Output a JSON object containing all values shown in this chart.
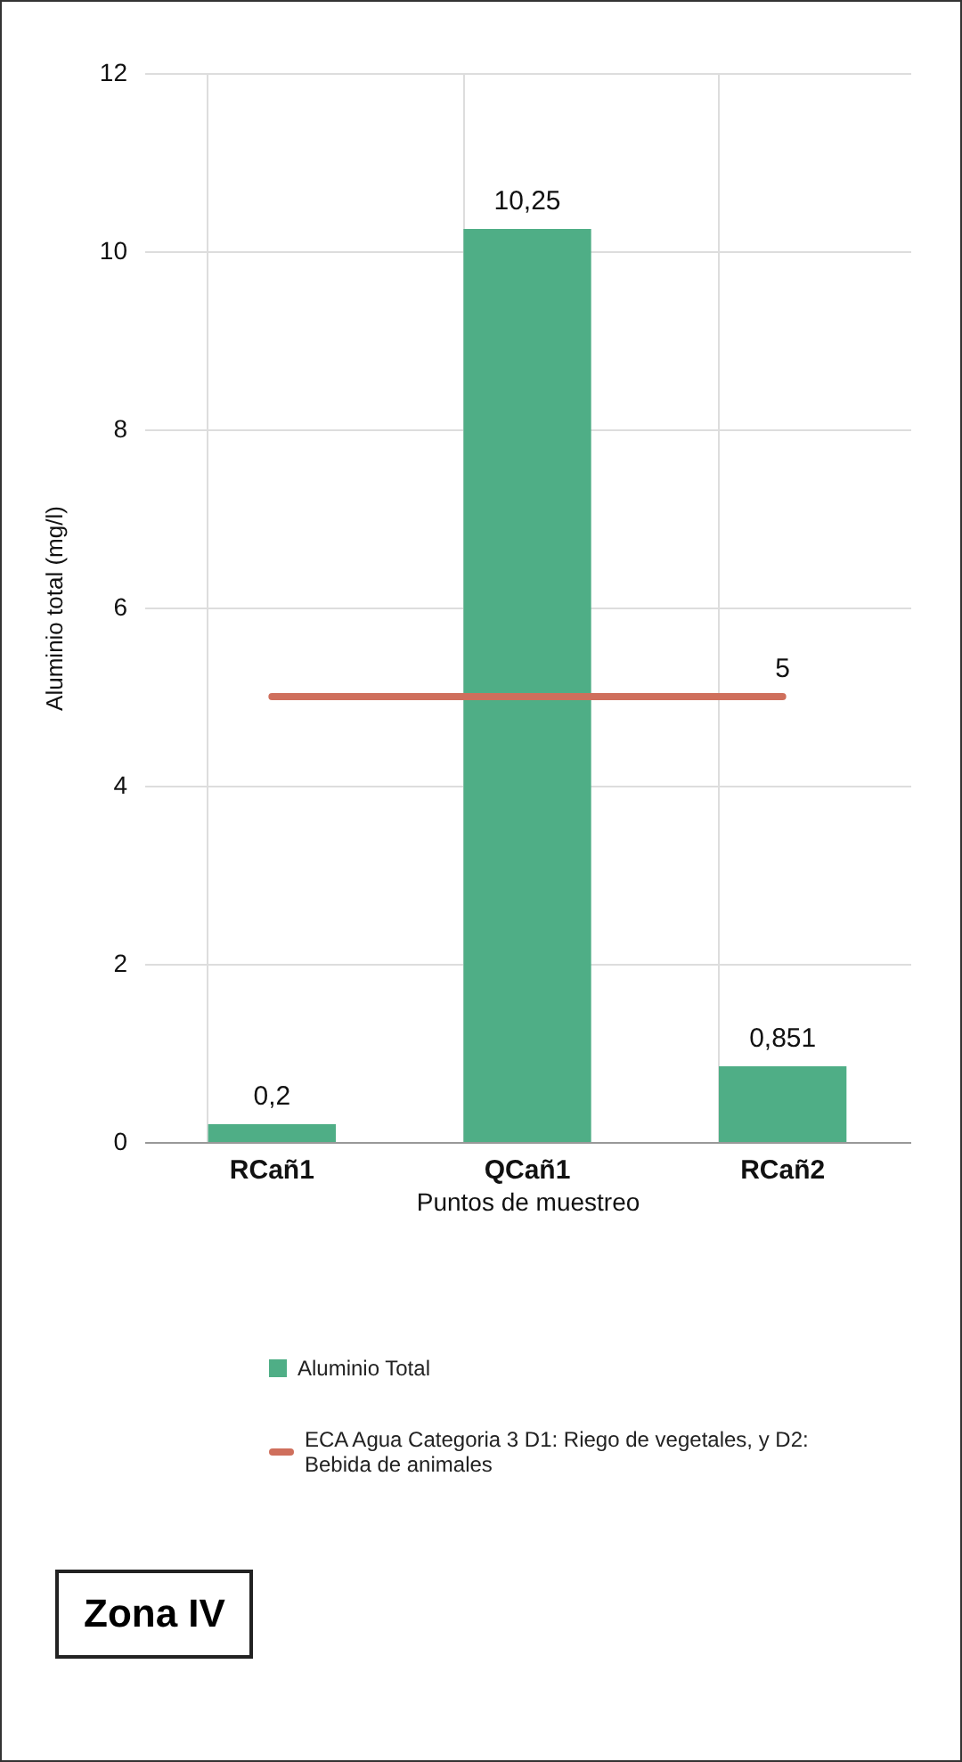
{
  "chart_data": {
    "type": "bar",
    "categories": [
      "RCañ1",
      "QCañ1",
      "RCañ2"
    ],
    "xlabel": "Puntos de muestreo",
    "ylabel": "Aluminio total (mg/l)",
    "series": [
      {
        "name": "Aluminio Total",
        "color": "#4fae86",
        "values": [
          0.2,
          10.25,
          0.851
        ],
        "value_labels": [
          "0,2",
          "10,25",
          "0,851"
        ]
      },
      {
        "name": "ECA Agua Categoria 3 D1: Riego de vegetales, y D2: Bebida de animales",
        "type": "line",
        "color": "#cf6f5c",
        "values": [
          5,
          5,
          5
        ],
        "value_labels": [
          null,
          null,
          "5"
        ]
      }
    ],
    "ylim": [
      0,
      12
    ],
    "yticks": [
      0,
      2,
      4,
      6,
      8,
      10,
      12
    ],
    "grid": true,
    "legend": "bottom",
    "annotations": [
      "Zona IV"
    ]
  }
}
